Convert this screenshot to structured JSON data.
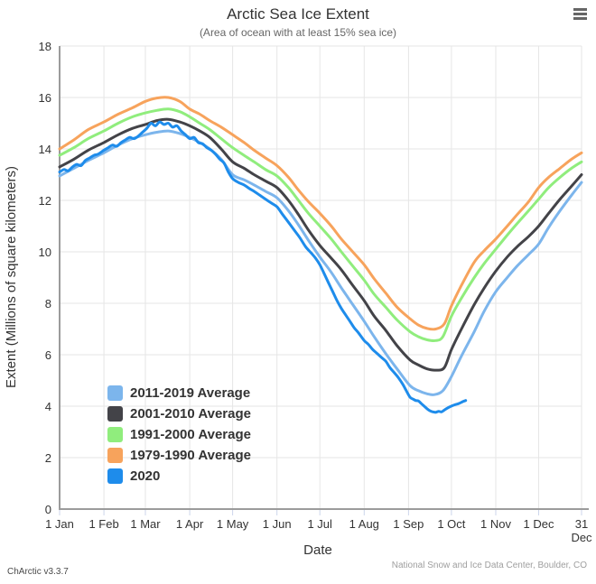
{
  "title": "Arctic Sea Ice Extent",
  "subtitle": "(Area of ocean with at least 15% sea ice)",
  "footer": {
    "left": "ChArctic v3.3.7",
    "right": "National Snow and Ice Data Center, Boulder, CO"
  },
  "colors": {
    "grid": "#e6e6e6",
    "axis": "#9b9b9b",
    "tick_mark": "#ccd6eb",
    "label": "#333333"
  },
  "chart_data": {
    "type": "line",
    "title": "Arctic Sea Ice Extent",
    "subtitle": "(Area of ocean with at least 15% sea ice)",
    "xlabel": "Date",
    "ylabel": "Extent (Millions of square kilometers)",
    "ylim": [
      0,
      18
    ],
    "y_ticks": [
      0,
      2,
      4,
      6,
      8,
      10,
      12,
      14,
      16,
      18
    ],
    "grid": true,
    "legend_position": "inside-bottom-left",
    "x_ticks": [
      {
        "day": 0,
        "lines": [
          "1 Jan"
        ]
      },
      {
        "day": 31,
        "lines": [
          "1 Feb"
        ]
      },
      {
        "day": 60,
        "lines": [
          "1 Mar"
        ]
      },
      {
        "day": 91,
        "lines": [
          "1 Apr"
        ]
      },
      {
        "day": 121,
        "lines": [
          "1 May"
        ]
      },
      {
        "day": 152,
        "lines": [
          "1 Jun"
        ]
      },
      {
        "day": 182,
        "lines": [
          "1 Jul"
        ]
      },
      {
        "day": 213,
        "lines": [
          "1 Aug"
        ]
      },
      {
        "day": 244,
        "lines": [
          "1 Sep"
        ]
      },
      {
        "day": 274,
        "lines": [
          "1 Oct"
        ]
      },
      {
        "day": 305,
        "lines": [
          "1 Nov"
        ]
      },
      {
        "day": 335,
        "lines": [
          "1 Dec"
        ]
      },
      {
        "day": 365,
        "lines": [
          "31",
          "Dec"
        ]
      }
    ],
    "series": [
      {
        "name": "2011-2019 Average",
        "color": "#7cb5ec",
        "width": 3,
        "points": [
          [
            0,
            12.95
          ],
          [
            10,
            13.25
          ],
          [
            20,
            13.55
          ],
          [
            31,
            13.85
          ],
          [
            41,
            14.15
          ],
          [
            51,
            14.4
          ],
          [
            60,
            14.55
          ],
          [
            68,
            14.65
          ],
          [
            76,
            14.7
          ],
          [
            84,
            14.6
          ],
          [
            91,
            14.45
          ],
          [
            98,
            14.25
          ],
          [
            105,
            14.0
          ],
          [
            113,
            13.6
          ],
          [
            121,
            13.0
          ],
          [
            129,
            12.8
          ],
          [
            136,
            12.6
          ],
          [
            144,
            12.35
          ],
          [
            152,
            12.1
          ],
          [
            160,
            11.6
          ],
          [
            167,
            11.05
          ],
          [
            174,
            10.45
          ],
          [
            182,
            9.8
          ],
          [
            190,
            9.2
          ],
          [
            197,
            8.6
          ],
          [
            205,
            7.95
          ],
          [
            213,
            7.3
          ],
          [
            220,
            6.7
          ],
          [
            228,
            6.05
          ],
          [
            236,
            5.45
          ],
          [
            245,
            4.8
          ],
          [
            251,
            4.6
          ],
          [
            257,
            4.48
          ],
          [
            262,
            4.45
          ],
          [
            268,
            4.6
          ],
          [
            274,
            5.15
          ],
          [
            281,
            5.95
          ],
          [
            290,
            6.9
          ],
          [
            297,
            7.7
          ],
          [
            305,
            8.45
          ],
          [
            313,
            9.0
          ],
          [
            320,
            9.45
          ],
          [
            328,
            9.9
          ],
          [
            335,
            10.3
          ],
          [
            342,
            10.95
          ],
          [
            350,
            11.6
          ],
          [
            358,
            12.2
          ],
          [
            365,
            12.7
          ]
        ]
      },
      {
        "name": "2001-2010 Average",
        "color": "#434348",
        "width": 3,
        "points": [
          [
            0,
            13.3
          ],
          [
            10,
            13.6
          ],
          [
            20,
            13.95
          ],
          [
            31,
            14.25
          ],
          [
            41,
            14.55
          ],
          [
            51,
            14.8
          ],
          [
            60,
            14.95
          ],
          [
            68,
            15.1
          ],
          [
            76,
            15.15
          ],
          [
            84,
            15.05
          ],
          [
            91,
            14.9
          ],
          [
            98,
            14.7
          ],
          [
            105,
            14.45
          ],
          [
            113,
            14.0
          ],
          [
            121,
            13.5
          ],
          [
            129,
            13.25
          ],
          [
            136,
            13.0
          ],
          [
            144,
            12.75
          ],
          [
            152,
            12.5
          ],
          [
            160,
            12.0
          ],
          [
            167,
            11.45
          ],
          [
            174,
            10.85
          ],
          [
            182,
            10.25
          ],
          [
            190,
            9.75
          ],
          [
            197,
            9.3
          ],
          [
            205,
            8.7
          ],
          [
            213,
            8.1
          ],
          [
            220,
            7.5
          ],
          [
            228,
            6.95
          ],
          [
            236,
            6.35
          ],
          [
            245,
            5.8
          ],
          [
            251,
            5.6
          ],
          [
            257,
            5.45
          ],
          [
            263,
            5.4
          ],
          [
            269,
            5.5
          ],
          [
            274,
            6.2
          ],
          [
            281,
            7.0
          ],
          [
            290,
            7.95
          ],
          [
            297,
            8.6
          ],
          [
            305,
            9.25
          ],
          [
            313,
            9.8
          ],
          [
            320,
            10.2
          ],
          [
            328,
            10.6
          ],
          [
            335,
            11.0
          ],
          [
            342,
            11.5
          ],
          [
            350,
            12.05
          ],
          [
            358,
            12.55
          ],
          [
            365,
            13.0
          ]
        ]
      },
      {
        "name": "1991-2000 Average",
        "color": "#90ed7d",
        "width": 3,
        "points": [
          [
            0,
            13.75
          ],
          [
            10,
            14.05
          ],
          [
            20,
            14.4
          ],
          [
            31,
            14.7
          ],
          [
            41,
            15.0
          ],
          [
            51,
            15.25
          ],
          [
            60,
            15.4
          ],
          [
            68,
            15.5
          ],
          [
            76,
            15.55
          ],
          [
            84,
            15.45
          ],
          [
            91,
            15.25
          ],
          [
            98,
            15.0
          ],
          [
            105,
            14.75
          ],
          [
            113,
            14.4
          ],
          [
            121,
            14.05
          ],
          [
            129,
            13.75
          ],
          [
            136,
            13.5
          ],
          [
            144,
            13.2
          ],
          [
            152,
            12.95
          ],
          [
            160,
            12.5
          ],
          [
            167,
            12.0
          ],
          [
            174,
            11.5
          ],
          [
            182,
            11.0
          ],
          [
            190,
            10.5
          ],
          [
            197,
            10.0
          ],
          [
            205,
            9.45
          ],
          [
            213,
            8.9
          ],
          [
            220,
            8.35
          ],
          [
            228,
            7.85
          ],
          [
            236,
            7.35
          ],
          [
            245,
            6.9
          ],
          [
            251,
            6.7
          ],
          [
            257,
            6.58
          ],
          [
            263,
            6.55
          ],
          [
            268,
            6.7
          ],
          [
            274,
            7.5
          ],
          [
            281,
            8.2
          ],
          [
            290,
            9.0
          ],
          [
            297,
            9.55
          ],
          [
            305,
            10.1
          ],
          [
            313,
            10.65
          ],
          [
            320,
            11.1
          ],
          [
            328,
            11.6
          ],
          [
            335,
            12.05
          ],
          [
            342,
            12.5
          ],
          [
            350,
            12.9
          ],
          [
            358,
            13.25
          ],
          [
            365,
            13.5
          ]
        ]
      },
      {
        "name": "1979-1990 Average",
        "color": "#f7a35c",
        "width": 3,
        "points": [
          [
            0,
            14.0
          ],
          [
            10,
            14.35
          ],
          [
            20,
            14.75
          ],
          [
            31,
            15.05
          ],
          [
            41,
            15.35
          ],
          [
            51,
            15.6
          ],
          [
            60,
            15.85
          ],
          [
            68,
            15.98
          ],
          [
            76,
            16.0
          ],
          [
            84,
            15.85
          ],
          [
            91,
            15.55
          ],
          [
            98,
            15.35
          ],
          [
            105,
            15.1
          ],
          [
            113,
            14.85
          ],
          [
            121,
            14.55
          ],
          [
            129,
            14.25
          ],
          [
            136,
            13.95
          ],
          [
            144,
            13.65
          ],
          [
            152,
            13.35
          ],
          [
            160,
            12.9
          ],
          [
            167,
            12.4
          ],
          [
            174,
            11.95
          ],
          [
            182,
            11.5
          ],
          [
            190,
            11.0
          ],
          [
            197,
            10.5
          ],
          [
            205,
            10.0
          ],
          [
            213,
            9.5
          ],
          [
            220,
            8.95
          ],
          [
            228,
            8.4
          ],
          [
            236,
            7.85
          ],
          [
            245,
            7.4
          ],
          [
            251,
            7.15
          ],
          [
            257,
            7.02
          ],
          [
            263,
            7.0
          ],
          [
            269,
            7.2
          ],
          [
            274,
            7.9
          ],
          [
            281,
            8.7
          ],
          [
            290,
            9.6
          ],
          [
            297,
            10.05
          ],
          [
            305,
            10.5
          ],
          [
            313,
            11.0
          ],
          [
            320,
            11.45
          ],
          [
            328,
            11.95
          ],
          [
            335,
            12.5
          ],
          [
            342,
            12.9
          ],
          [
            350,
            13.25
          ],
          [
            358,
            13.6
          ],
          [
            365,
            13.85
          ]
        ]
      },
      {
        "name": "2020",
        "color": "#1e8ceb",
        "width": 3,
        "points": [
          [
            0,
            13.1
          ],
          [
            3,
            13.2
          ],
          [
            6,
            13.15
          ],
          [
            9,
            13.3
          ],
          [
            12,
            13.4
          ],
          [
            15,
            13.35
          ],
          [
            18,
            13.55
          ],
          [
            21,
            13.65
          ],
          [
            24,
            13.75
          ],
          [
            27,
            13.8
          ],
          [
            31,
            13.95
          ],
          [
            34,
            14.05
          ],
          [
            37,
            14.15
          ],
          [
            40,
            14.1
          ],
          [
            43,
            14.25
          ],
          [
            46,
            14.35
          ],
          [
            49,
            14.45
          ],
          [
            52,
            14.4
          ],
          [
            55,
            14.5
          ],
          [
            58,
            14.65
          ],
          [
            61,
            14.8
          ],
          [
            64,
            15.0
          ],
          [
            67,
            14.9
          ],
          [
            70,
            15.05
          ],
          [
            73,
            14.95
          ],
          [
            76,
            15.0
          ],
          [
            79,
            14.85
          ],
          [
            82,
            14.9
          ],
          [
            85,
            14.7
          ],
          [
            88,
            14.55
          ],
          [
            91,
            14.4
          ],
          [
            94,
            14.45
          ],
          [
            97,
            14.25
          ],
          [
            100,
            14.2
          ],
          [
            103,
            14.05
          ],
          [
            106,
            13.95
          ],
          [
            109,
            13.8
          ],
          [
            112,
            13.6
          ],
          [
            115,
            13.45
          ],
          [
            118,
            13.1
          ],
          [
            121,
            12.85
          ],
          [
            125,
            12.7
          ],
          [
            129,
            12.6
          ],
          [
            133,
            12.45
          ],
          [
            136,
            12.35
          ],
          [
            140,
            12.2
          ],
          [
            144,
            12.05
          ],
          [
            148,
            11.9
          ],
          [
            152,
            11.75
          ],
          [
            156,
            11.45
          ],
          [
            160,
            11.15
          ],
          [
            164,
            10.85
          ],
          [
            168,
            10.55
          ],
          [
            172,
            10.2
          ],
          [
            176,
            9.95
          ],
          [
            179,
            9.75
          ],
          [
            182,
            9.5
          ],
          [
            185,
            9.15
          ],
          [
            188,
            8.8
          ],
          [
            191,
            8.45
          ],
          [
            194,
            8.1
          ],
          [
            197,
            7.8
          ],
          [
            200,
            7.55
          ],
          [
            203,
            7.3
          ],
          [
            206,
            7.05
          ],
          [
            209,
            6.85
          ],
          [
            213,
            6.55
          ],
          [
            216,
            6.4
          ],
          [
            219,
            6.2
          ],
          [
            222,
            6.05
          ],
          [
            225,
            5.9
          ],
          [
            228,
            5.75
          ],
          [
            231,
            5.5
          ],
          [
            234,
            5.3
          ],
          [
            237,
            5.1
          ],
          [
            240,
            4.85
          ],
          [
            242,
            4.65
          ],
          [
            245,
            4.35
          ],
          [
            247,
            4.28
          ],
          [
            249,
            4.22
          ],
          [
            251,
            4.2
          ],
          [
            253,
            4.1
          ],
          [
            255,
            4.0
          ],
          [
            257,
            3.9
          ],
          [
            259,
            3.82
          ],
          [
            261,
            3.78
          ],
          [
            263,
            3.76
          ],
          [
            265,
            3.8
          ],
          [
            267,
            3.78
          ],
          [
            269,
            3.85
          ],
          [
            271,
            3.92
          ],
          [
            273,
            3.98
          ],
          [
            276,
            4.05
          ],
          [
            279,
            4.1
          ],
          [
            282,
            4.18
          ],
          [
            284,
            4.22
          ]
        ]
      }
    ]
  }
}
